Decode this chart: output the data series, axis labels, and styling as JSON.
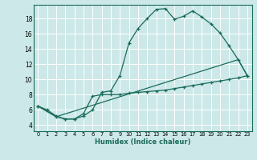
{
  "title": "",
  "xlabel": "Humidex (Indice chaleur)",
  "background_color": "#cce8e8",
  "grid_color": "#ffffff",
  "line_color": "#1a6b5a",
  "xlim": [
    -0.5,
    23.5
  ],
  "ylim": [
    3.2,
    19.8
  ],
  "xticks": [
    0,
    1,
    2,
    3,
    4,
    5,
    6,
    7,
    8,
    9,
    10,
    11,
    12,
    13,
    14,
    15,
    16,
    17,
    18,
    19,
    20,
    21,
    22,
    23
  ],
  "yticks": [
    4,
    6,
    8,
    10,
    12,
    14,
    16,
    18
  ],
  "line1_x": [
    0,
    1,
    2,
    3,
    4,
    5,
    6,
    7,
    8,
    9,
    10,
    11,
    12,
    13,
    14,
    15,
    16,
    17,
    18,
    19,
    20,
    21,
    22,
    23
  ],
  "line1_y": [
    6.5,
    6.0,
    5.2,
    4.8,
    4.8,
    5.2,
    6.0,
    8.3,
    8.5,
    10.5,
    14.8,
    16.7,
    18.0,
    19.2,
    19.3,
    17.9,
    18.3,
    19.0,
    18.2,
    17.3,
    16.1,
    14.4,
    12.6,
    10.5
  ],
  "line2_x": [
    0,
    2,
    3,
    4,
    5,
    6,
    7,
    8,
    9,
    10,
    11,
    12,
    13,
    14,
    15,
    16,
    17,
    18,
    19,
    20,
    21,
    22,
    23
  ],
  "line2_y": [
    6.5,
    5.1,
    4.8,
    4.8,
    5.5,
    7.8,
    8.0,
    8.0,
    8.0,
    8.2,
    8.3,
    8.4,
    8.5,
    8.6,
    8.8,
    9.0,
    9.2,
    9.4,
    9.6,
    9.8,
    10.0,
    10.2,
    10.5
  ],
  "line3_x": [
    0,
    2,
    22,
    23
  ],
  "line3_y": [
    6.5,
    5.1,
    12.6,
    10.5
  ],
  "xlabel_fontsize": 6.0,
  "tick_fontsize_x": 4.8,
  "tick_fontsize_y": 5.5
}
